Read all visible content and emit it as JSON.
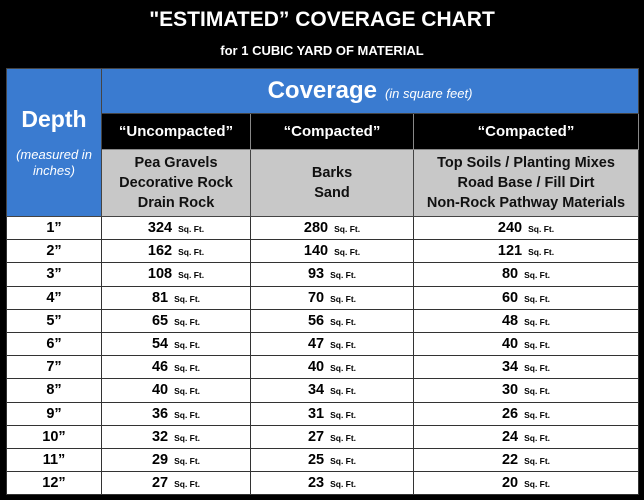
{
  "header": {
    "title": "\"ESTIMATED” COVERAGE CHART",
    "subtitle": "for 1 CUBIC YARD OF MATERIAL"
  },
  "table": {
    "depth_header": "Depth",
    "depth_note": "(measured in inches)",
    "coverage_header": "Coverage",
    "coverage_note": "(in square feet)",
    "columns": [
      {
        "compaction": "“Uncompacted”",
        "materials": [
          "Pea Gravels",
          "Decorative Rock",
          "Drain Rock"
        ]
      },
      {
        "compaction": "“Compacted”",
        "materials": [
          "Barks",
          "Sand"
        ]
      },
      {
        "compaction": "“Compacted”",
        "materials": [
          "Top Soils / Planting Mixes",
          "Road Base / Fill Dirt",
          "Non-Rock Pathway Materials"
        ]
      }
    ],
    "unit": "Sq. Ft.",
    "rows": [
      {
        "depth": "1”",
        "values": [
          324,
          280,
          240
        ]
      },
      {
        "depth": "2”",
        "values": [
          162,
          140,
          121
        ]
      },
      {
        "depth": "3”",
        "values": [
          108,
          93,
          80
        ]
      },
      {
        "depth": "4”",
        "values": [
          81,
          70,
          60
        ]
      },
      {
        "depth": "5”",
        "values": [
          65,
          56,
          48
        ]
      },
      {
        "depth": "6”",
        "values": [
          54,
          47,
          40
        ]
      },
      {
        "depth": "7”",
        "values": [
          46,
          40,
          34
        ]
      },
      {
        "depth": "8”",
        "values": [
          40,
          34,
          30
        ]
      },
      {
        "depth": "9”",
        "values": [
          36,
          31,
          26
        ]
      },
      {
        "depth": "10”",
        "values": [
          32,
          27,
          24
        ]
      },
      {
        "depth": "11”",
        "values": [
          29,
          25,
          22
        ]
      },
      {
        "depth": "12”",
        "values": [
          27,
          23,
          20
        ]
      }
    ]
  }
}
